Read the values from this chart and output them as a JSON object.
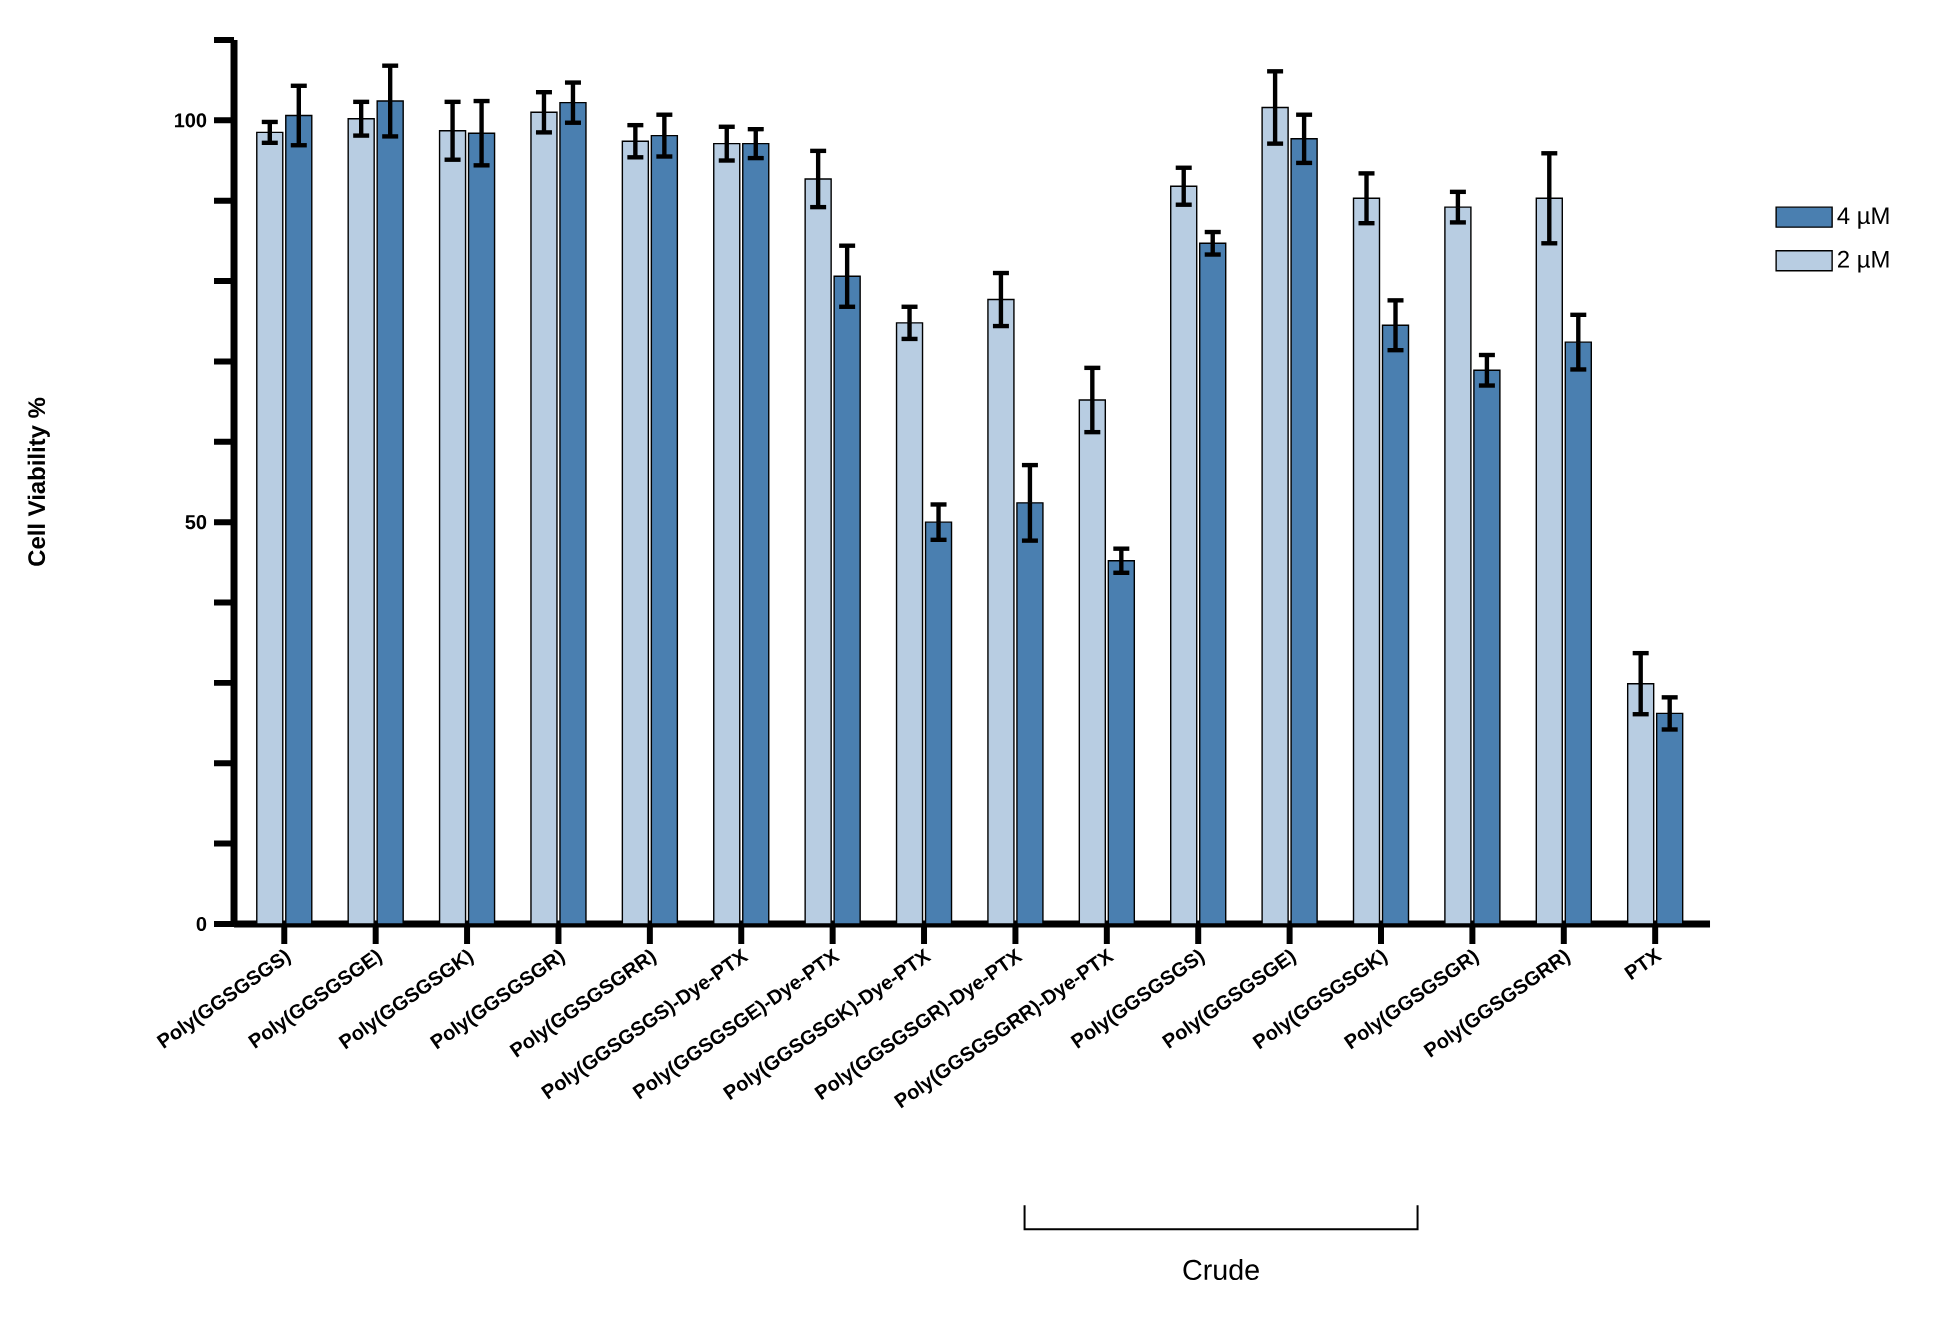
{
  "chart_data": {
    "type": "bar",
    "ylabel": "Cell Viability %",
    "categories": [
      "Poly(GGSGSGS)",
      "Poly(GGSGSGE)",
      "Poly(GGSGSGK)",
      "Poly(GGSGSGR)",
      "Poly(GGSGSGRR)",
      "Poly(GGSGSGS)-Dye-PTX",
      "Poly(GGSGSGE)-Dye-PTX",
      "Poly(GGSGSGK)-Dye-PTX",
      "Poly(GGSGSGR)-Dye-PTX",
      "Poly(GGSGSGRR)-Dye-PTX",
      "Poly(GGSGSGS)",
      "Poly(GGSGSGE)",
      "Poly(GGSGSGK)",
      "Poly(GGSGSGR)",
      "Poly(GGSGSGRR)",
      "PTX"
    ],
    "series": [
      {
        "name": "2 µM",
        "color": "#b8cde2",
        "values": [
          98.5,
          100.2,
          98.7,
          101,
          97.4,
          97.1,
          92.7,
          74.8,
          77.7,
          65.2,
          91.8,
          101.6,
          90.3,
          89.2,
          90.3,
          29.9
        ],
        "errors": [
          1.3,
          2.1,
          3.6,
          2.5,
          2.0,
          2.1,
          3.5,
          2.0,
          3.3,
          4.0,
          2.3,
          4.5,
          3.1,
          1.9,
          5.6,
          3.8
        ]
      },
      {
        "name": "4 µM",
        "color": "#4a7fb0",
        "values": [
          100.6,
          102.4,
          98.4,
          102.2,
          98.1,
          97.1,
          80.6,
          50,
          52.4,
          45.2,
          84.7,
          97.7,
          74.5,
          68.9,
          72.4,
          26.2
        ],
        "errors": [
          3.7,
          4.4,
          4.0,
          2.5,
          2.6,
          1.8,
          3.8,
          2.2,
          4.7,
          1.5,
          1.4,
          3.0,
          3.1,
          1.9,
          3.4,
          2.0
        ]
      }
    ],
    "ylim": [
      0,
      110
    ],
    "yticks": [
      0,
      {
        "value": 10,
        "label": null
      },
      {
        "value": 20,
        "label": null
      },
      {
        "value": 30,
        "label": null
      },
      {
        "value": 40,
        "label": null
      },
      50,
      {
        "value": 60,
        "label": null
      },
      {
        "value": 70,
        "label": null
      },
      {
        "value": 80,
        "label": null
      },
      {
        "value": 90,
        "label": null
      },
      100,
      {
        "value": 110,
        "label": null
      }
    ],
    "legend": "right",
    "annotations": [
      "Crude"
    ]
  }
}
